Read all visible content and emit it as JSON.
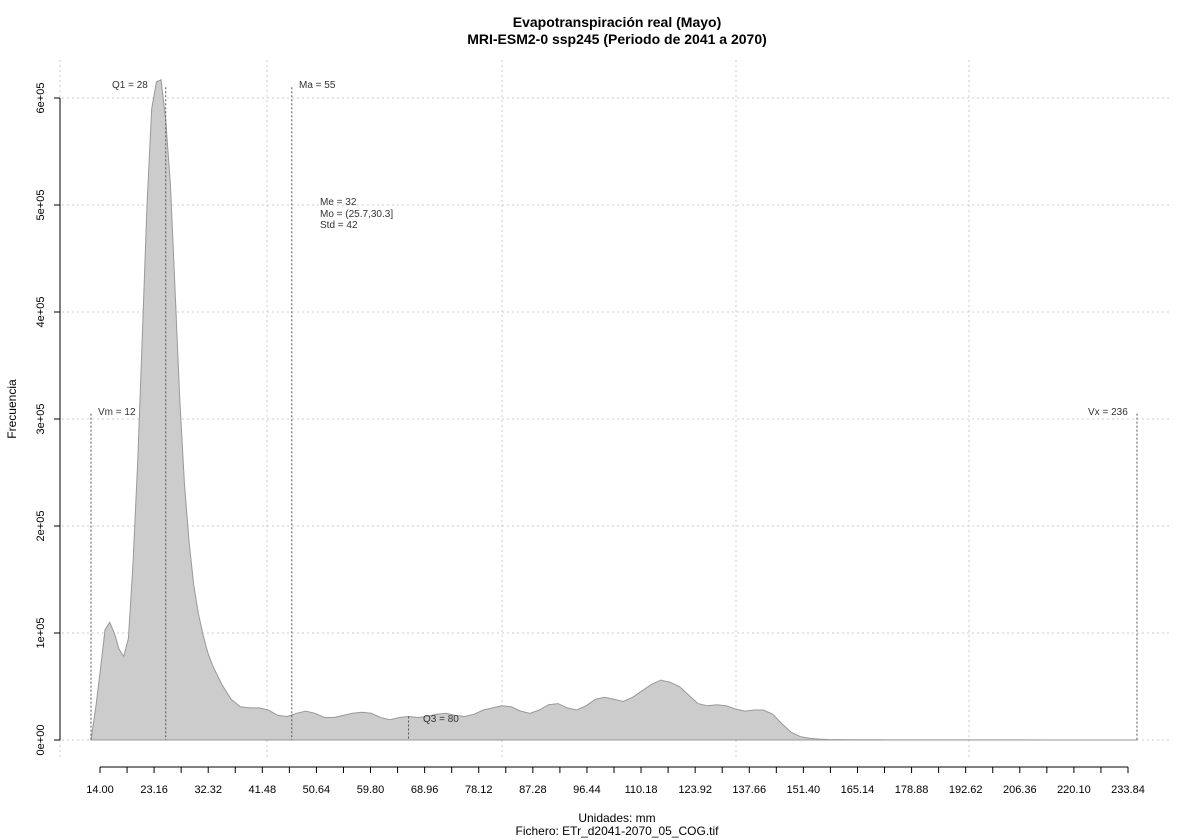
{
  "chart_data": {
    "type": "area",
    "title": "Evapotranspiración real (Mayo)",
    "subtitle": "MRI-ESM2-0 ssp245 (Periodo de 2041 a 2070)",
    "xlabel": "Unidades: mm",
    "caption": "Fichero: ETr_d2041-2070_05_COG.tif",
    "ylabel": "Frecuencia",
    "xlim": [
      12,
      236
    ],
    "ylim": [
      0,
      600000
    ],
    "x_ticks": [
      "14.00",
      "23.16",
      "32.32",
      "41.48",
      "50.64",
      "59.80",
      "68.96",
      "78.12",
      "87.28",
      "96.44",
      "110.18",
      "123.92",
      "137.66",
      "151.40",
      "165.14",
      "178.88",
      "192.62",
      "206.36",
      "220.10",
      "233.84"
    ],
    "y_ticks": [
      "0e+00",
      "1e+05",
      "2e+05",
      "3e+05",
      "4e+05",
      "5e+05",
      "6e+05"
    ],
    "grid": true,
    "fill_color": "#cccccc",
    "line_color": "#999999",
    "series": [
      {
        "x": [
          12.0,
          13.0,
          14.0,
          15.0,
          16.0,
          17.0,
          18.0,
          19.0,
          20.0,
          21.0,
          22.0,
          23.0,
          24.0,
          25.0,
          26.0,
          27.0,
          28.0,
          28.5,
          29.0,
          30.0,
          31.0,
          32.0,
          33.0,
          34.0,
          35.0,
          36.0,
          37.0,
          38.0,
          40.0,
          42.0,
          44.0,
          46.0,
          48.0,
          50.0,
          52.0,
          54.0,
          56.0,
          58.0,
          60.0,
          62.0,
          64.0,
          66.0,
          68.0,
          70.0,
          72.0,
          74.0,
          76.0,
          78.0,
          80.0,
          82.0,
          84.0,
          86.0,
          88.0,
          90.0,
          92.0,
          94.0,
          96.0,
          98.0,
          100.0,
          102.0,
          104.0,
          106.0,
          108.0,
          110.0,
          112.0,
          114.0,
          116.0,
          118.0,
          120.0,
          122.0,
          124.0,
          126.0,
          128.0,
          130.0,
          132.0,
          134.0,
          136.0,
          138.0,
          140.0,
          142.0,
          144.0,
          146.0,
          148.0,
          150.0,
          152.0,
          154.0,
          156.0,
          158.0,
          160.0,
          162.0,
          164.0,
          166.0,
          168.0,
          170.0,
          175.0,
          180.0,
          190.0,
          200.0,
          210.0,
          220.0,
          230.0,
          236.0
        ],
        "y": [
          0,
          30000,
          65000,
          103000,
          110000,
          100000,
          85000,
          78000,
          95000,
          165000,
          260000,
          380000,
          500000,
          590000,
          615000,
          617000,
          580000,
          550000,
          520000,
          420000,
          320000,
          240000,
          185000,
          145000,
          118000,
          98000,
          82000,
          70000,
          52000,
          38000,
          31000,
          30000,
          30000,
          28000,
          23000,
          22000,
          25000,
          27000,
          25000,
          21000,
          21000,
          23000,
          25000,
          26000,
          25000,
          21000,
          19000,
          21000,
          22000,
          21000,
          22000,
          24000,
          25000,
          23000,
          22000,
          24000,
          28000,
          30000,
          32000,
          31000,
          27000,
          25000,
          28000,
          33000,
          34000,
          30000,
          28000,
          32000,
          38000,
          40000,
          38000,
          36000,
          40000,
          46000,
          52000,
          56000,
          54000,
          50000,
          42000,
          34000,
          32000,
          33000,
          32000,
          29000,
          27000,
          28000,
          28000,
          24000,
          15000,
          7000,
          3000,
          1500,
          800,
          500,
          300,
          200,
          100,
          80,
          50,
          30,
          10,
          0
        ]
      }
    ],
    "annotations": {
      "vm": {
        "label": "Vm = 12",
        "x": 12,
        "y_top": 305000
      },
      "q1": {
        "label": "Q1 = 28",
        "x": 28,
        "y_top": 610000
      },
      "ma": {
        "label": "Ma = 55",
        "x": 55,
        "y_top": 610000
      },
      "q3": {
        "label": "Q3 = 80",
        "x": 80,
        "y_top": 22000
      },
      "vx": {
        "label": "Vx = 236",
        "x": 236,
        "y_top": 305000
      },
      "stats": [
        "Me = 32",
        "Mo = (25.7,30.3]",
        "Std = 42"
      ]
    }
  }
}
